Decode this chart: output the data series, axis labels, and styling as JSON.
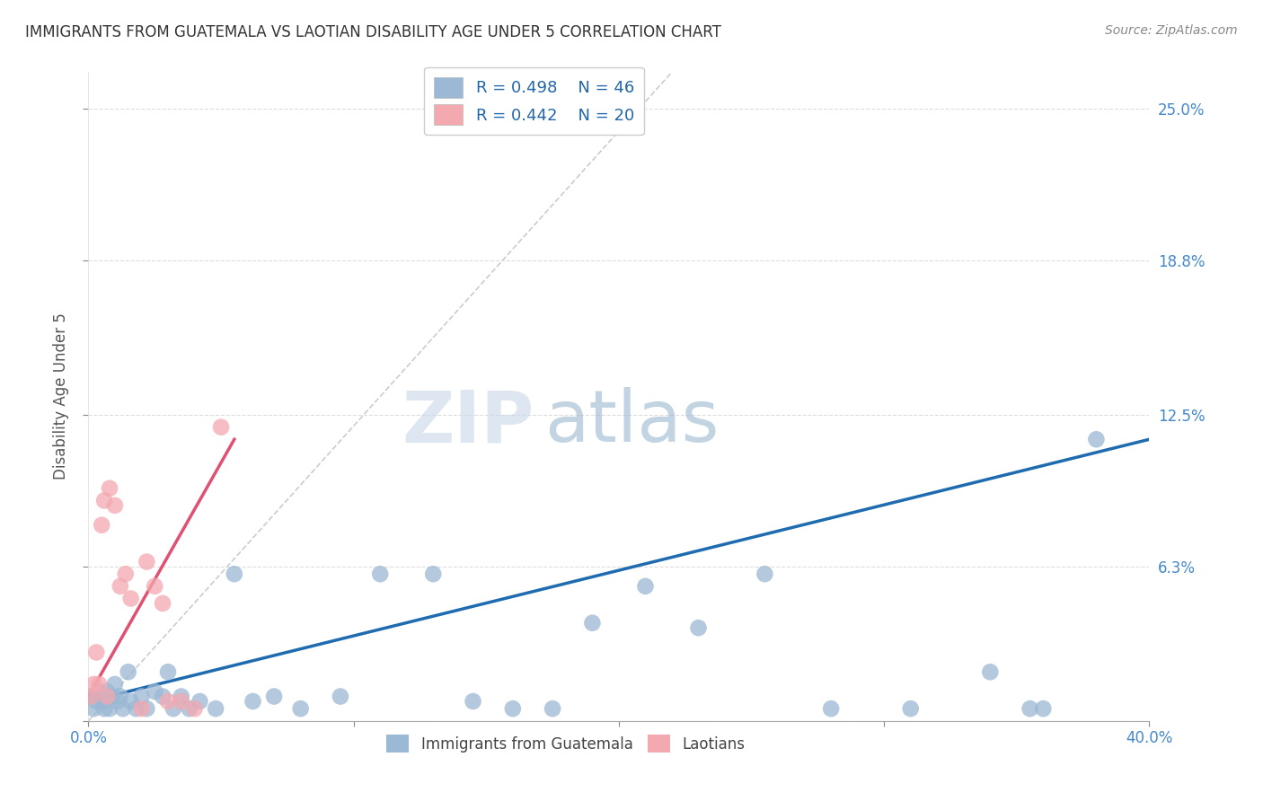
{
  "title": "IMMIGRANTS FROM GUATEMALA VS LAOTIAN DISABILITY AGE UNDER 5 CORRELATION CHART",
  "source": "Source: ZipAtlas.com",
  "ylabel_label": "Disability Age Under 5",
  "xlim": [
    0.0,
    0.4
  ],
  "ylim": [
    0.0,
    0.265
  ],
  "ytick_vals": [
    0.0,
    0.063,
    0.125,
    0.188,
    0.25
  ],
  "xtick_vals": [
    0.0,
    0.1,
    0.2,
    0.3,
    0.4
  ],
  "ytick_labels": [
    "",
    "6.3%",
    "12.5%",
    "18.8%",
    "25.0%"
  ],
  "xtick_labels_show": [
    "0.0%",
    "",
    "",
    "",
    "40.0%"
  ],
  "legend_r1": "R = 0.498",
  "legend_n1": "N = 46",
  "legend_r2": "R = 0.442",
  "legend_n2": "N = 20",
  "color_blue": "#9BB8D4",
  "color_pink": "#F4A8B0",
  "color_blue_line": "#1F6BB0",
  "color_pink_line": "#E05070",
  "color_diag_line": "#CCCCCC",
  "background_color": "#FFFFFF",
  "grid_color": "#DDDDDD",
  "blue_x": [
    0.001,
    0.002,
    0.003,
    0.004,
    0.005,
    0.006,
    0.007,
    0.008,
    0.009,
    0.01,
    0.011,
    0.012,
    0.013,
    0.015,
    0.016,
    0.018,
    0.02,
    0.022,
    0.025,
    0.028,
    0.03,
    0.032,
    0.035,
    0.038,
    0.042,
    0.048,
    0.055,
    0.062,
    0.07,
    0.08,
    0.095,
    0.11,
    0.13,
    0.145,
    0.16,
    0.175,
    0.19,
    0.21,
    0.23,
    0.255,
    0.28,
    0.31,
    0.34,
    0.36,
    0.38,
    0.355
  ],
  "blue_y": [
    0.01,
    0.005,
    0.008,
    0.012,
    0.008,
    0.005,
    0.012,
    0.005,
    0.01,
    0.015,
    0.008,
    0.01,
    0.005,
    0.02,
    0.008,
    0.005,
    0.01,
    0.005,
    0.012,
    0.01,
    0.02,
    0.005,
    0.01,
    0.005,
    0.008,
    0.005,
    0.06,
    0.008,
    0.01,
    0.005,
    0.01,
    0.06,
    0.06,
    0.008,
    0.005,
    0.005,
    0.04,
    0.055,
    0.038,
    0.06,
    0.005,
    0.005,
    0.02,
    0.005,
    0.115,
    0.005
  ],
  "pink_x": [
    0.001,
    0.002,
    0.003,
    0.004,
    0.005,
    0.006,
    0.007,
    0.008,
    0.01,
    0.012,
    0.014,
    0.016,
    0.02,
    0.022,
    0.025,
    0.028,
    0.03,
    0.035,
    0.04,
    0.05
  ],
  "pink_y": [
    0.01,
    0.015,
    0.028,
    0.015,
    0.08,
    0.09,
    0.01,
    0.095,
    0.088,
    0.055,
    0.06,
    0.05,
    0.005,
    0.065,
    0.055,
    0.048,
    0.008,
    0.008,
    0.005,
    0.12
  ],
  "blue_line_x0": 0.0,
  "blue_line_y0": 0.008,
  "blue_line_x1": 0.4,
  "blue_line_y1": 0.115,
  "pink_line_x0": 0.0,
  "pink_line_y0": 0.01,
  "pink_line_x1": 0.055,
  "pink_line_y1": 0.115,
  "diag_line_x0": 0.0,
  "diag_line_y0": 0.0,
  "diag_line_x1": 0.22,
  "diag_line_y1": 0.265,
  "title_color": "#333333",
  "source_color": "#888888",
  "axis_label_color": "#555555",
  "right_tick_color": "#4488CC",
  "legend_text_color": "#2266AA"
}
